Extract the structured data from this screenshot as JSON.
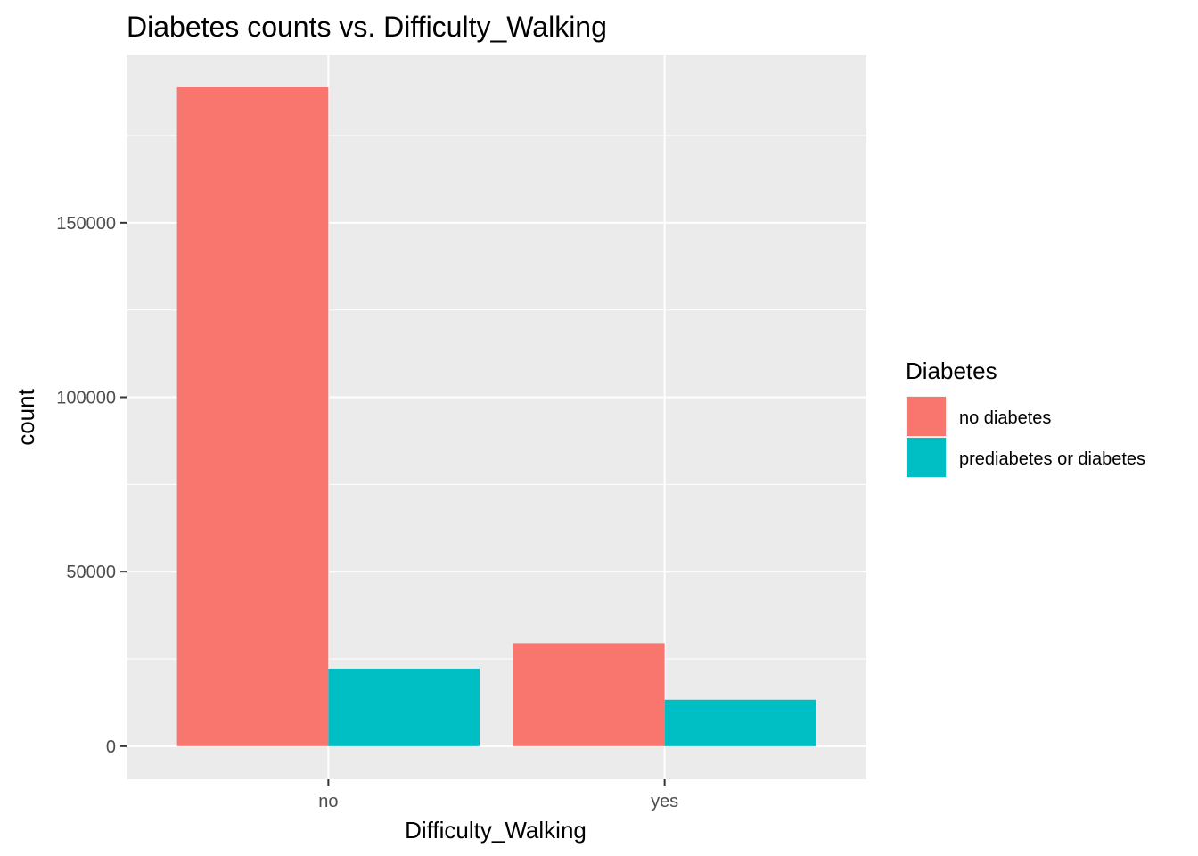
{
  "chart_data": {
    "type": "bar",
    "title": "Diabetes counts vs. Difficulty_Walking",
    "xlabel": "Difficulty_Walking",
    "ylabel": "count",
    "categories": [
      "no",
      "yes"
    ],
    "series": [
      {
        "name": "no diabetes",
        "color": "#F8766D",
        "values": [
          188800,
          29500
        ]
      },
      {
        "name": "prediabetes or diabetes",
        "color": "#00BFC4",
        "values": [
          22200,
          13300
        ]
      }
    ],
    "ylim": [
      -9500,
      198000
    ],
    "yticks": [
      0,
      50000,
      100000,
      150000
    ],
    "yticks_minor": [
      25000,
      75000,
      125000,
      175000
    ],
    "grid": true,
    "legend": {
      "title": "Diabetes",
      "placement": "right"
    }
  }
}
